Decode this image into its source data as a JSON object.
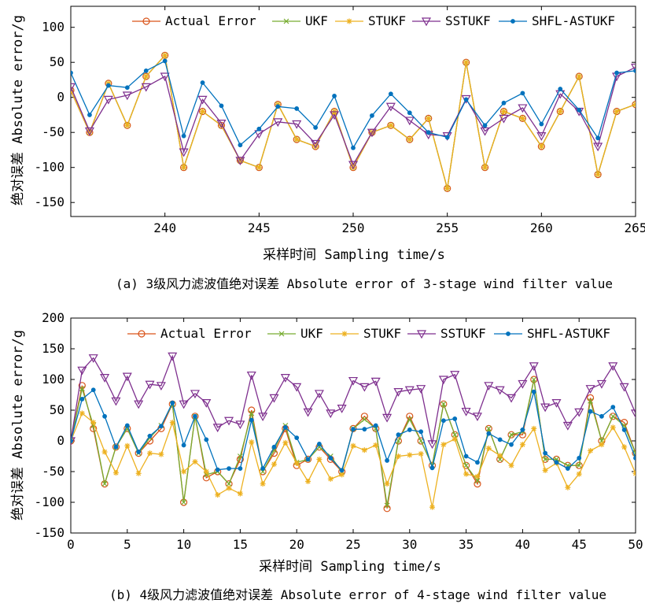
{
  "colors": {
    "actual": "#d95319",
    "ukf": "#77ac30",
    "stukf": "#edb120",
    "sstukf": "#7e2f8e",
    "shfl": "#0072bd"
  },
  "legend_placement": "top-right",
  "chart_data": [
    {
      "type": "line",
      "caption": "(a) 3级风力滤波值绝对误差 Absolute error of 3-stage wind filter value",
      "xlabel": "采样时间 Sampling time/s",
      "ylabel": "绝对误差 Absolute error/g",
      "xlim": [
        235,
        265
      ],
      "ylim": [
        -170,
        130
      ],
      "xticks": [
        240,
        245,
        250,
        255,
        260,
        265
      ],
      "yticks": [
        100,
        50,
        0,
        -50,
        -100,
        -150
      ],
      "x": [
        235,
        236,
        237,
        238,
        239,
        240,
        241,
        242,
        243,
        244,
        245,
        246,
        247,
        248,
        249,
        250,
        251,
        252,
        253,
        254,
        255,
        256,
        257,
        258,
        259,
        260,
        261,
        262,
        263,
        264,
        265
      ],
      "series": [
        {
          "name": "Actual Error",
          "key": "actual",
          "marker": "circle",
          "values": [
            10,
            -50,
            20,
            -40,
            30,
            60,
            -100,
            -20,
            -40,
            -90,
            -100,
            -10,
            -60,
            -70,
            -20,
            -100,
            -50,
            -40,
            -60,
            -30,
            -130,
            50,
            -100,
            -20,
            -30,
            -70,
            -20,
            30,
            -110,
            -20,
            -10
          ]
        },
        {
          "name": "UKF",
          "key": "ukf",
          "marker": "x",
          "values": [
            10,
            -50,
            20,
            -40,
            30,
            60,
            -100,
            -20,
            -40,
            -90,
            -100,
            -10,
            -60,
            -70,
            -20,
            -100,
            -50,
            -40,
            -60,
            -30,
            -130,
            50,
            -100,
            -20,
            -30,
            -70,
            -20,
            30,
            -110,
            -20,
            -10
          ]
        },
        {
          "name": "STUKF",
          "key": "stukf",
          "marker": "star",
          "values": [
            10,
            -50,
            20,
            -40,
            30,
            60,
            -100,
            -20,
            -40,
            -90,
            -100,
            -10,
            -60,
            -70,
            -20,
            -100,
            -50,
            -40,
            -60,
            -30,
            -130,
            50,
            -100,
            -20,
            -30,
            -70,
            -20,
            30,
            -110,
            -20,
            -10
          ]
        },
        {
          "name": "SSTUKF",
          "key": "sstukf",
          "marker": "triangle",
          "values": [
            15,
            -48,
            -3,
            3,
            15,
            30,
            -78,
            -3,
            -37,
            -90,
            -52,
            -35,
            -38,
            -66,
            -25,
            -96,
            -50,
            -13,
            -33,
            -53,
            -55,
            -2,
            -48,
            -30,
            -15,
            -55,
            5,
            -20,
            -70,
            30,
            43
          ]
        },
        {
          "name": "SHFL-ASTUKF",
          "key": "shfl",
          "marker": "dot",
          "values": [
            35,
            -25,
            17,
            14,
            38,
            52,
            -55,
            21,
            -12,
            -68,
            -45,
            -13,
            -16,
            -43,
            2,
            -72,
            -26,
            5,
            -22,
            -50,
            -57,
            -3,
            -40,
            -8,
            6,
            -38,
            12,
            -18,
            -58,
            35,
            38
          ]
        }
      ]
    },
    {
      "type": "line",
      "caption": "(b) 4级风力滤波值绝对误差 Absolute error of 4-stage wind filter value",
      "xlabel": "采样时间 Sampling time/s",
      "ylabel": "绝对误差 Absolute error/g",
      "xlim": [
        0,
        50
      ],
      "ylim": [
        -150,
        200
      ],
      "xticks": [
        0,
        5,
        10,
        15,
        20,
        25,
        30,
        35,
        40,
        45,
        50
      ],
      "yticks": [
        200,
        150,
        100,
        50,
        0,
        -50,
        -100,
        -150
      ],
      "x": [
        0,
        1,
        2,
        3,
        4,
        5,
        6,
        7,
        8,
        9,
        10,
        11,
        12,
        13,
        14,
        15,
        16,
        17,
        18,
        19,
        20,
        21,
        22,
        23,
        24,
        25,
        26,
        27,
        28,
        29,
        30,
        31,
        32,
        33,
        34,
        35,
        36,
        37,
        38,
        39,
        40,
        41,
        42,
        43,
        44,
        45,
        46,
        47,
        48,
        49,
        50
      ],
      "series": [
        {
          "name": "Actual Error",
          "key": "actual",
          "marker": "circle",
          "values": [
            0,
            90,
            20,
            -70,
            -10,
            20,
            -20,
            0,
            20,
            60,
            -100,
            40,
            -60,
            -50,
            -70,
            -30,
            50,
            -50,
            -20,
            20,
            -40,
            -30,
            -10,
            -30,
            -50,
            20,
            40,
            20,
            -110,
            0,
            40,
            0,
            -40,
            60,
            10,
            -40,
            -70,
            20,
            -30,
            10,
            10,
            100,
            -30,
            -30,
            -40,
            -40,
            70,
            0,
            40,
            30,
            -20
          ]
        },
        {
          "name": "UKF",
          "key": "ukf",
          "marker": "x",
          "values": [
            0,
            85,
            25,
            -70,
            -10,
            20,
            -20,
            5,
            25,
            60,
            -100,
            40,
            -55,
            -50,
            -70,
            -25,
            45,
            -50,
            -15,
            25,
            -35,
            -30,
            -10,
            -25,
            -50,
            20,
            35,
            20,
            -105,
            0,
            35,
            0,
            -40,
            60,
            10,
            -40,
            -65,
            20,
            -30,
            10,
            15,
            100,
            -30,
            -30,
            -40,
            -40,
            65,
            0,
            40,
            25,
            -20
          ]
        },
        {
          "name": "STUKF",
          "key": "stukf",
          "marker": "star",
          "values": [
            0,
            45,
            30,
            -18,
            -52,
            -8,
            -53,
            -20,
            -22,
            30,
            -50,
            -34,
            -50,
            -88,
            -77,
            -86,
            -2,
            -70,
            -38,
            -3,
            -36,
            -66,
            -30,
            -62,
            -55,
            -8,
            -15,
            -7,
            -70,
            -25,
            -23,
            -21,
            -108,
            -6,
            3,
            -54,
            -58,
            -12,
            -24,
            -40,
            -6,
            20,
            -48,
            -36,
            -76,
            -54,
            -16,
            -6,
            22,
            -10,
            -53
          ]
        },
        {
          "name": "SSTUKF",
          "key": "sstukf",
          "marker": "triangle",
          "values": [
            0,
            115,
            135,
            103,
            65,
            105,
            60,
            92,
            90,
            138,
            60,
            77,
            62,
            22,
            33,
            27,
            107,
            40,
            70,
            103,
            88,
            47,
            77,
            45,
            53,
            98,
            88,
            97,
            38,
            80,
            83,
            85,
            -5,
            100,
            108,
            48,
            40,
            90,
            83,
            70,
            93,
            122,
            55,
            62,
            25,
            47,
            85,
            93,
            122,
            88,
            45
          ]
        },
        {
          "name": "SHFL-ASTUKF",
          "key": "shfl",
          "marker": "dot",
          "values": [
            0,
            68,
            83,
            40,
            -10,
            25,
            -18,
            8,
            24,
            62,
            -7,
            40,
            2,
            -47,
            -45,
            -45,
            34,
            -45,
            -10,
            22,
            5,
            -30,
            -5,
            -28,
            -48,
            19,
            19,
            25,
            -32,
            10,
            18,
            15,
            -44,
            33,
            36,
            -25,
            -35,
            12,
            2,
            -6,
            18,
            80,
            -20,
            -35,
            -45,
            -28,
            48,
            40,
            55,
            18,
            -28
          ]
        }
      ]
    }
  ]
}
